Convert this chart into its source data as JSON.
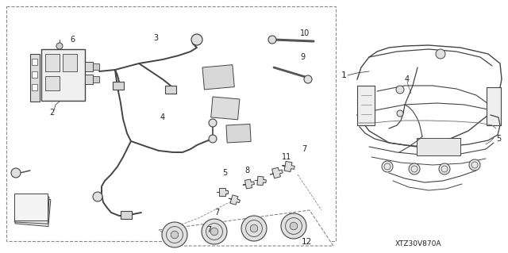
{
  "bg_color": "#ffffff",
  "line_color": "#444444",
  "text_color": "#222222",
  "diagram_code": "XTZ30V870A",
  "fig_width": 6.4,
  "fig_height": 3.19,
  "dpi": 100
}
